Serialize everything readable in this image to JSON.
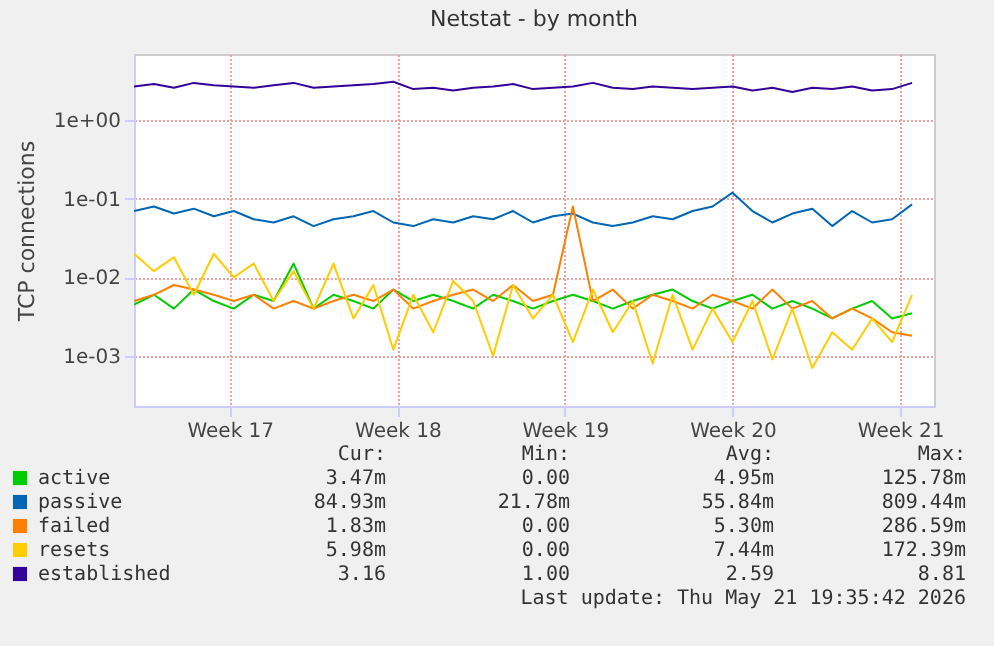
{
  "chart_data": {
    "type": "line",
    "title": "Netstat - by month",
    "ylabel": "TCP connections",
    "log": "y",
    "grid": true,
    "legend": "bottom left",
    "xlim": [
      "2026-04-18T14:00",
      "2026-05-22T00:00"
    ],
    "xticks": [
      {
        "value": "2026-04-22T14:00",
        "label": "Week 17"
      },
      {
        "value": "2026-04-29T14:00",
        "label": "Week 18"
      },
      {
        "value": "2026-05-06T14:00",
        "label": "Week 19"
      },
      {
        "value": "2026-05-13T14:00",
        "label": "Week 20"
      },
      {
        "value": "2026-05-20T14:00",
        "label": "Week 21"
      }
    ],
    "ylim": [
      0.00023,
      7
    ],
    "yticks": [
      {
        "value": 0.001,
        "label": "1e-03"
      },
      {
        "value": 0.01,
        "label": "1e-02"
      },
      {
        "value": 0.1,
        "label": "1e-01"
      },
      {
        "value": 1,
        "label": "1e+00"
      }
    ],
    "x": [
      "2026-04-18T14:00",
      "2026-04-19T10:00",
      "2026-04-20T06:00",
      "2026-04-21T02:00",
      "2026-04-21T22:00",
      "2026-04-22T18:00",
      "2026-04-23T14:00",
      "2026-04-24T10:00",
      "2026-04-25T06:00",
      "2026-04-26T02:00",
      "2026-04-26T22:00",
      "2026-04-27T18:00",
      "2026-04-28T14:00",
      "2026-04-29T10:00",
      "2026-04-30T06:00",
      "2026-05-01T02:00",
      "2026-05-01T22:00",
      "2026-05-02T18:00",
      "2026-05-03T14:00",
      "2026-05-04T10:00",
      "2026-05-05T06:00",
      "2026-05-06T02:00",
      "2026-05-06T22:00",
      "2026-05-07T18:00",
      "2026-05-08T14:00",
      "2026-05-09T10:00",
      "2026-05-10T06:00",
      "2026-05-11T02:00",
      "2026-05-11T22:00",
      "2026-05-12T18:00",
      "2026-05-13T14:00",
      "2026-05-14T10:00",
      "2026-05-15T06:00",
      "2026-05-16T02:00",
      "2026-05-16T22:00",
      "2026-05-17T18:00",
      "2026-05-18T14:00",
      "2026-05-19T10:00",
      "2026-05-20T06:00",
      "2026-05-21T02:00"
    ],
    "series": [
      {
        "name": "active",
        "color": "#00cc00",
        "values": [
          0.0045,
          0.006,
          0.004,
          0.007,
          0.005,
          0.004,
          0.006,
          0.005,
          0.015,
          0.004,
          0.006,
          0.005,
          0.004,
          0.007,
          0.005,
          0.006,
          0.005,
          0.004,
          0.006,
          0.005,
          0.004,
          0.005,
          0.006,
          0.005,
          0.004,
          0.005,
          0.006,
          0.007,
          0.005,
          0.004,
          0.005,
          0.006,
          0.004,
          0.005,
          0.004,
          0.003,
          0.004,
          0.005,
          0.003,
          0.0035
        ]
      },
      {
        "name": "passive",
        "color": "#0066b3",
        "values": [
          0.07,
          0.08,
          0.065,
          0.075,
          0.06,
          0.07,
          0.055,
          0.05,
          0.06,
          0.045,
          0.055,
          0.06,
          0.07,
          0.05,
          0.045,
          0.055,
          0.05,
          0.06,
          0.055,
          0.07,
          0.05,
          0.06,
          0.065,
          0.05,
          0.045,
          0.05,
          0.06,
          0.055,
          0.07,
          0.08,
          0.12,
          0.07,
          0.05,
          0.065,
          0.075,
          0.045,
          0.07,
          0.05,
          0.055,
          0.085
        ]
      },
      {
        "name": "failed",
        "color": "#ff8000",
        "values": [
          0.005,
          0.006,
          0.008,
          0.007,
          0.006,
          0.005,
          0.006,
          0.004,
          0.005,
          0.004,
          0.005,
          0.006,
          0.005,
          0.007,
          0.004,
          0.005,
          0.006,
          0.007,
          0.005,
          0.008,
          0.005,
          0.006,
          0.08,
          0.005,
          0.007,
          0.004,
          0.006,
          0.005,
          0.004,
          0.006,
          0.005,
          0.004,
          0.007,
          0.004,
          0.005,
          0.003,
          0.004,
          0.003,
          0.002,
          0.0018
        ]
      },
      {
        "name": "resets",
        "color": "#ffcc00",
        "values": [
          0.02,
          0.012,
          0.018,
          0.006,
          0.02,
          0.01,
          0.015,
          0.005,
          0.012,
          0.004,
          0.015,
          0.003,
          0.008,
          0.0012,
          0.006,
          0.002,
          0.009,
          0.005,
          0.001,
          0.008,
          0.003,
          0.006,
          0.0015,
          0.007,
          0.002,
          0.005,
          0.0008,
          0.006,
          0.0012,
          0.004,
          0.0015,
          0.005,
          0.0009,
          0.004,
          0.0007,
          0.002,
          0.0012,
          0.003,
          0.0015,
          0.006
        ]
      },
      {
        "name": "established",
        "color": "#330099",
        "values": [
          2.7,
          2.9,
          2.6,
          3.0,
          2.8,
          2.7,
          2.6,
          2.8,
          3.0,
          2.6,
          2.7,
          2.8,
          2.9,
          3.1,
          2.5,
          2.6,
          2.4,
          2.6,
          2.7,
          2.9,
          2.5,
          2.6,
          2.7,
          3.0,
          2.6,
          2.5,
          2.7,
          2.6,
          2.5,
          2.6,
          2.7,
          2.4,
          2.6,
          2.3,
          2.6,
          2.5,
          2.7,
          2.4,
          2.5,
          3.0
        ]
      }
    ],
    "annotations": [
      "Cur:",
      "Min:",
      "Avg:",
      "Max:",
      "3.47m",
      "0.00",
      "4.95m",
      "125.78m",
      "84.93m",
      "21.78m",
      "55.84m",
      "809.44m",
      "1.83m",
      "0.00",
      "5.30m",
      "286.59m",
      "5.98m",
      "0.00",
      "7.44m",
      "172.39m",
      "3.16",
      "1.00",
      "2.59",
      "8.81",
      "Last update: Thu May 21 19:35:42 2026"
    ]
  }
}
